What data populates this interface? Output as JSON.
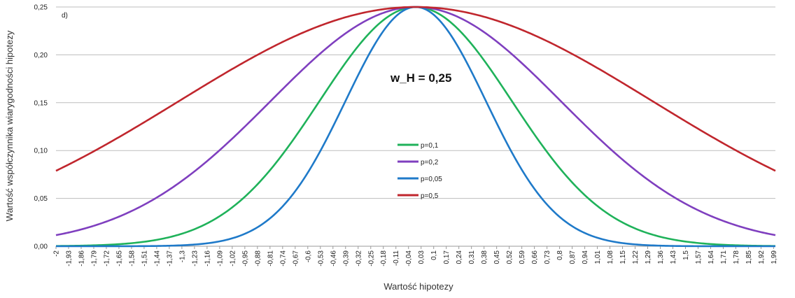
{
  "chart_data": {
    "type": "line",
    "panel_label": "d)",
    "annotation": "w_H = 0,25",
    "xlabel": "Wartość hipotezy",
    "ylabel": "Wartość współczynnika wiarygodności hipotezy",
    "x_range": [
      -2,
      2
    ],
    "x_step": 0.01,
    "x_tick_labels": [
      "-2",
      "-1,93",
      "-1,86",
      "-1,79",
      "-1,72",
      "-1,65",
      "-1,58",
      "-1,51",
      "-1,44",
      "-1,37",
      "-1,3",
      "-1,23",
      "-1,16",
      "-1,09",
      "-1,02",
      "-0,95",
      "-0,88",
      "-0,81",
      "-0,74",
      "-0,67",
      "-0,6",
      "-0,53",
      "-0,46",
      "-0,39",
      "-0,32",
      "-0,25",
      "-0,18",
      "-0,11",
      "-0,04",
      "0,03",
      "0,1",
      "0,17",
      "0,24",
      "0,31",
      "0,38",
      "0,45",
      "0,52",
      "0,59",
      "0,66",
      "0,73",
      "0,8",
      "0,87",
      "0,94",
      "1,01",
      "1,08",
      "1,15",
      "1,22",
      "1,29",
      "1,36",
      "1,43",
      "1,5",
      "1,57",
      "1,64",
      "1,71",
      "1,78",
      "1,85",
      "1,92",
      "1,99"
    ],
    "y_tick_labels": [
      "0,00",
      "0,05",
      "0,10",
      "0,15",
      "0,20",
      "0,25"
    ],
    "ylim": [
      0,
      0.25
    ],
    "grid": "horizontal",
    "legend_position": "center",
    "series": [
      {
        "name": "p=0,1",
        "color": "#1fb25a",
        "peak": 0.25,
        "x_at_half_peak": 0.63,
        "samples": [
          {
            "x": -2,
            "y": 0.001
          },
          {
            "x": -1,
            "y": 0.06
          },
          {
            "x": 0,
            "y": 0.25
          },
          {
            "x": 1,
            "y": 0.06
          },
          {
            "x": 2,
            "y": 0.001
          }
        ]
      },
      {
        "name": "p=0,2",
        "color": "#7f3fbf",
        "peak": 0.25,
        "x_at_half_peak": 0.95,
        "samples": [
          {
            "x": -2,
            "y": 0.02
          },
          {
            "x": -1,
            "y": 0.125
          },
          {
            "x": 0,
            "y": 0.25
          },
          {
            "x": 1,
            "y": 0.125
          },
          {
            "x": 2,
            "y": 0.02
          }
        ]
      },
      {
        "name": "p=0,05",
        "color": "#1f7ac9",
        "peak": 0.25,
        "x_at_half_peak": 0.46,
        "samples": [
          {
            "x": -2,
            "y": 0.0
          },
          {
            "x": -1,
            "y": 0.015
          },
          {
            "x": 0,
            "y": 0.25
          },
          {
            "x": 1,
            "y": 0.015
          },
          {
            "x": 2,
            "y": 0.0
          }
        ]
      },
      {
        "name": "p=0,5",
        "color": "#c0262d",
        "peak": 0.25,
        "x_at_half_peak": 1.55,
        "samples": [
          {
            "x": -2,
            "y": 0.092
          },
          {
            "x": -1,
            "y": 0.19
          },
          {
            "x": 0,
            "y": 0.25
          },
          {
            "x": 1,
            "y": 0.19
          },
          {
            "x": 2,
            "y": 0.092
          }
        ]
      }
    ]
  }
}
